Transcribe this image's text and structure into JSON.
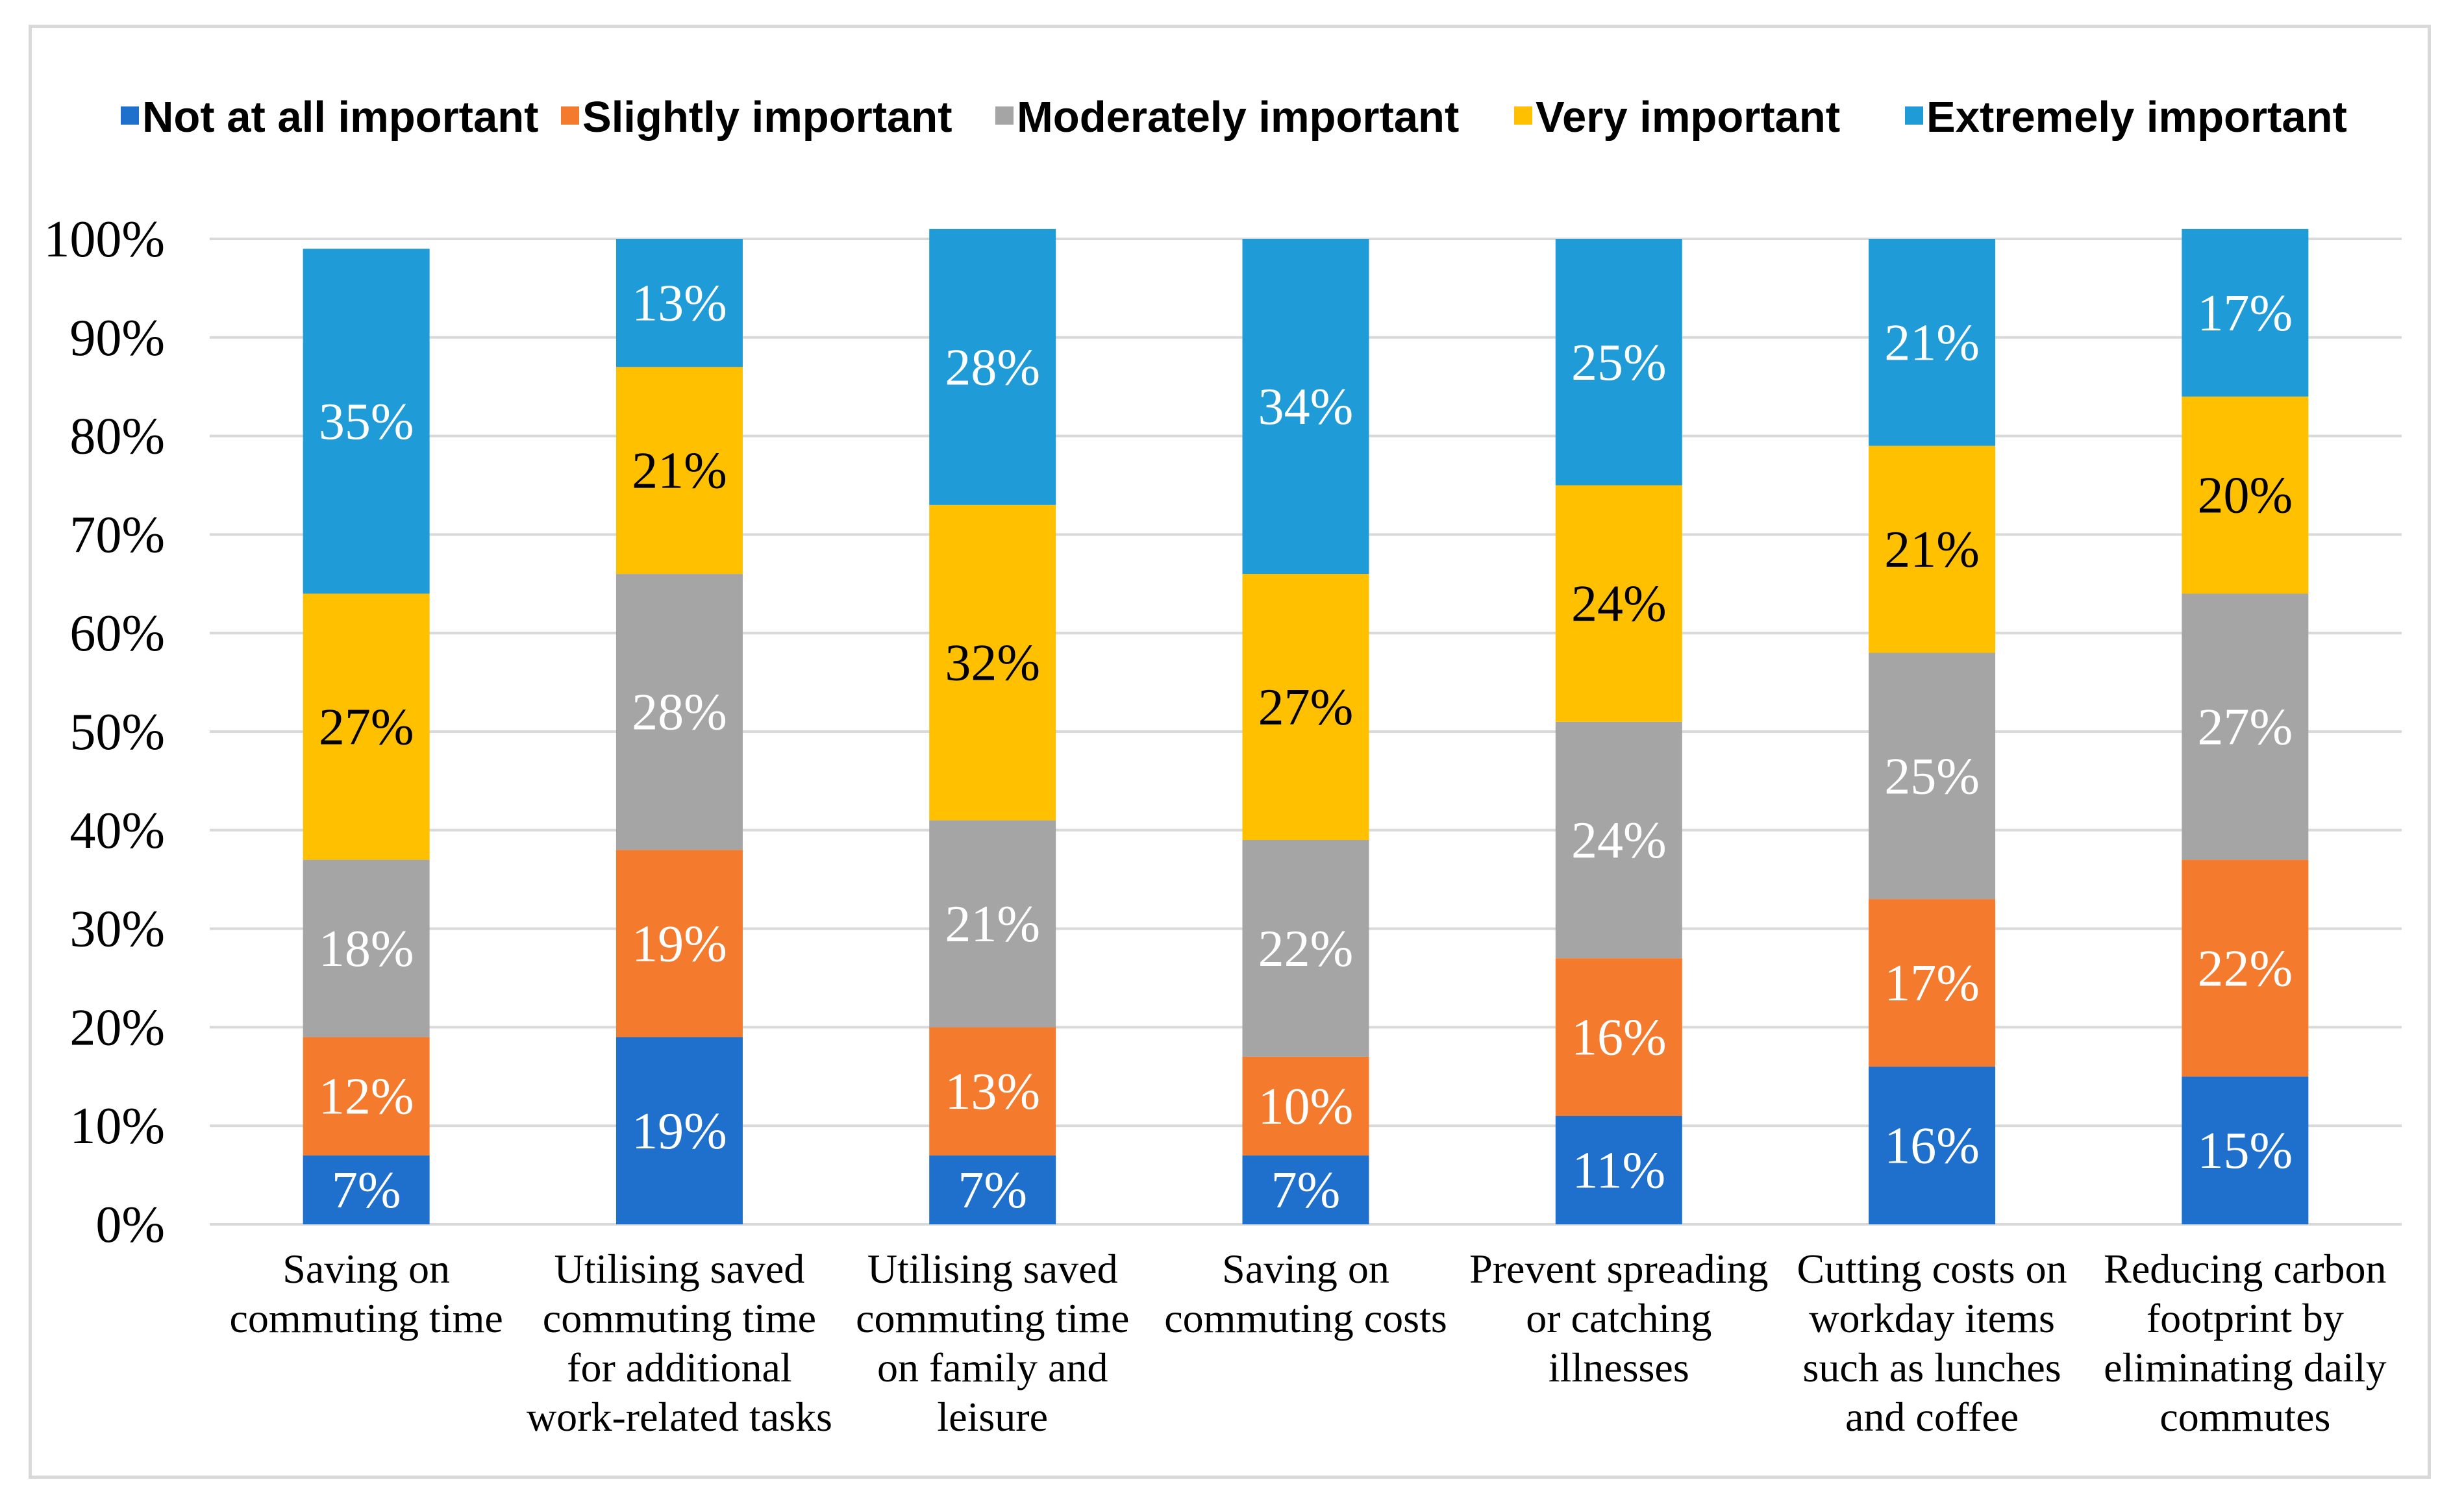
{
  "chart_data": {
    "type": "bar",
    "stacked": true,
    "percent": true,
    "title": "",
    "xlabel": "",
    "ylabel": "",
    "ylim": [
      0,
      100
    ],
    "yticks": [
      "0%",
      "10%",
      "20%",
      "30%",
      "40%",
      "50%",
      "60%",
      "70%",
      "80%",
      "90%",
      "100%"
    ],
    "grid": true,
    "legend_position": "top",
    "categories": [
      [
        "Saving on",
        "commuting time"
      ],
      [
        "Utilising saved",
        "commuting time",
        "for additional",
        "work-related tasks"
      ],
      [
        "Utilising saved",
        "commuting time",
        "on family and",
        "leisure"
      ],
      [
        "Saving on",
        "commuting costs"
      ],
      [
        "Prevent spreading",
        "or catching",
        "illnesses"
      ],
      [
        "Cutting costs on",
        "workday items",
        "such as lunches",
        "and coffee"
      ],
      [
        "Reducing carbon",
        "footprint by",
        "eliminating daily",
        "commutes"
      ]
    ],
    "series": [
      {
        "name": "Not at all important",
        "color": "#1f6fcc",
        "label_color": "#ffffff",
        "values": [
          7,
          19,
          7,
          7,
          11,
          16,
          15
        ],
        "labels": [
          "7%",
          "19%",
          "7%",
          "7%",
          "11%",
          "16%",
          "15%"
        ]
      },
      {
        "name": "Slightly important",
        "color": "#f47a2d",
        "label_color": "#ffffff",
        "values": [
          12,
          19,
          13,
          10,
          16,
          17,
          22
        ],
        "labels": [
          "12%",
          "19%",
          "13%",
          "10%",
          "16%",
          "17%",
          "22%"
        ]
      },
      {
        "name": "Moderately important",
        "color": "#a5a5a5",
        "label_color": "#ffffff",
        "values": [
          18,
          28,
          21,
          22,
          24,
          25,
          27
        ],
        "labels": [
          "18%",
          "28%",
          "21%",
          "22%",
          "24%",
          "25%",
          "27%"
        ]
      },
      {
        "name": "Very important",
        "color": "#ffc000",
        "label_color": "#000000",
        "values": [
          27,
          21,
          32,
          27,
          24,
          21,
          20
        ],
        "labels": [
          "27%",
          "21%",
          "32%",
          "27%",
          "24%",
          "21%",
          "20%"
        ]
      },
      {
        "name": "Extremely important",
        "color": "#1f9bd8",
        "label_color": "#ffffff",
        "values": [
          35,
          13,
          28,
          34,
          25,
          21,
          17
        ],
        "labels": [
          "35%",
          "13%",
          "28%",
          "34%",
          "25%",
          "21%",
          "17%"
        ]
      }
    ]
  }
}
